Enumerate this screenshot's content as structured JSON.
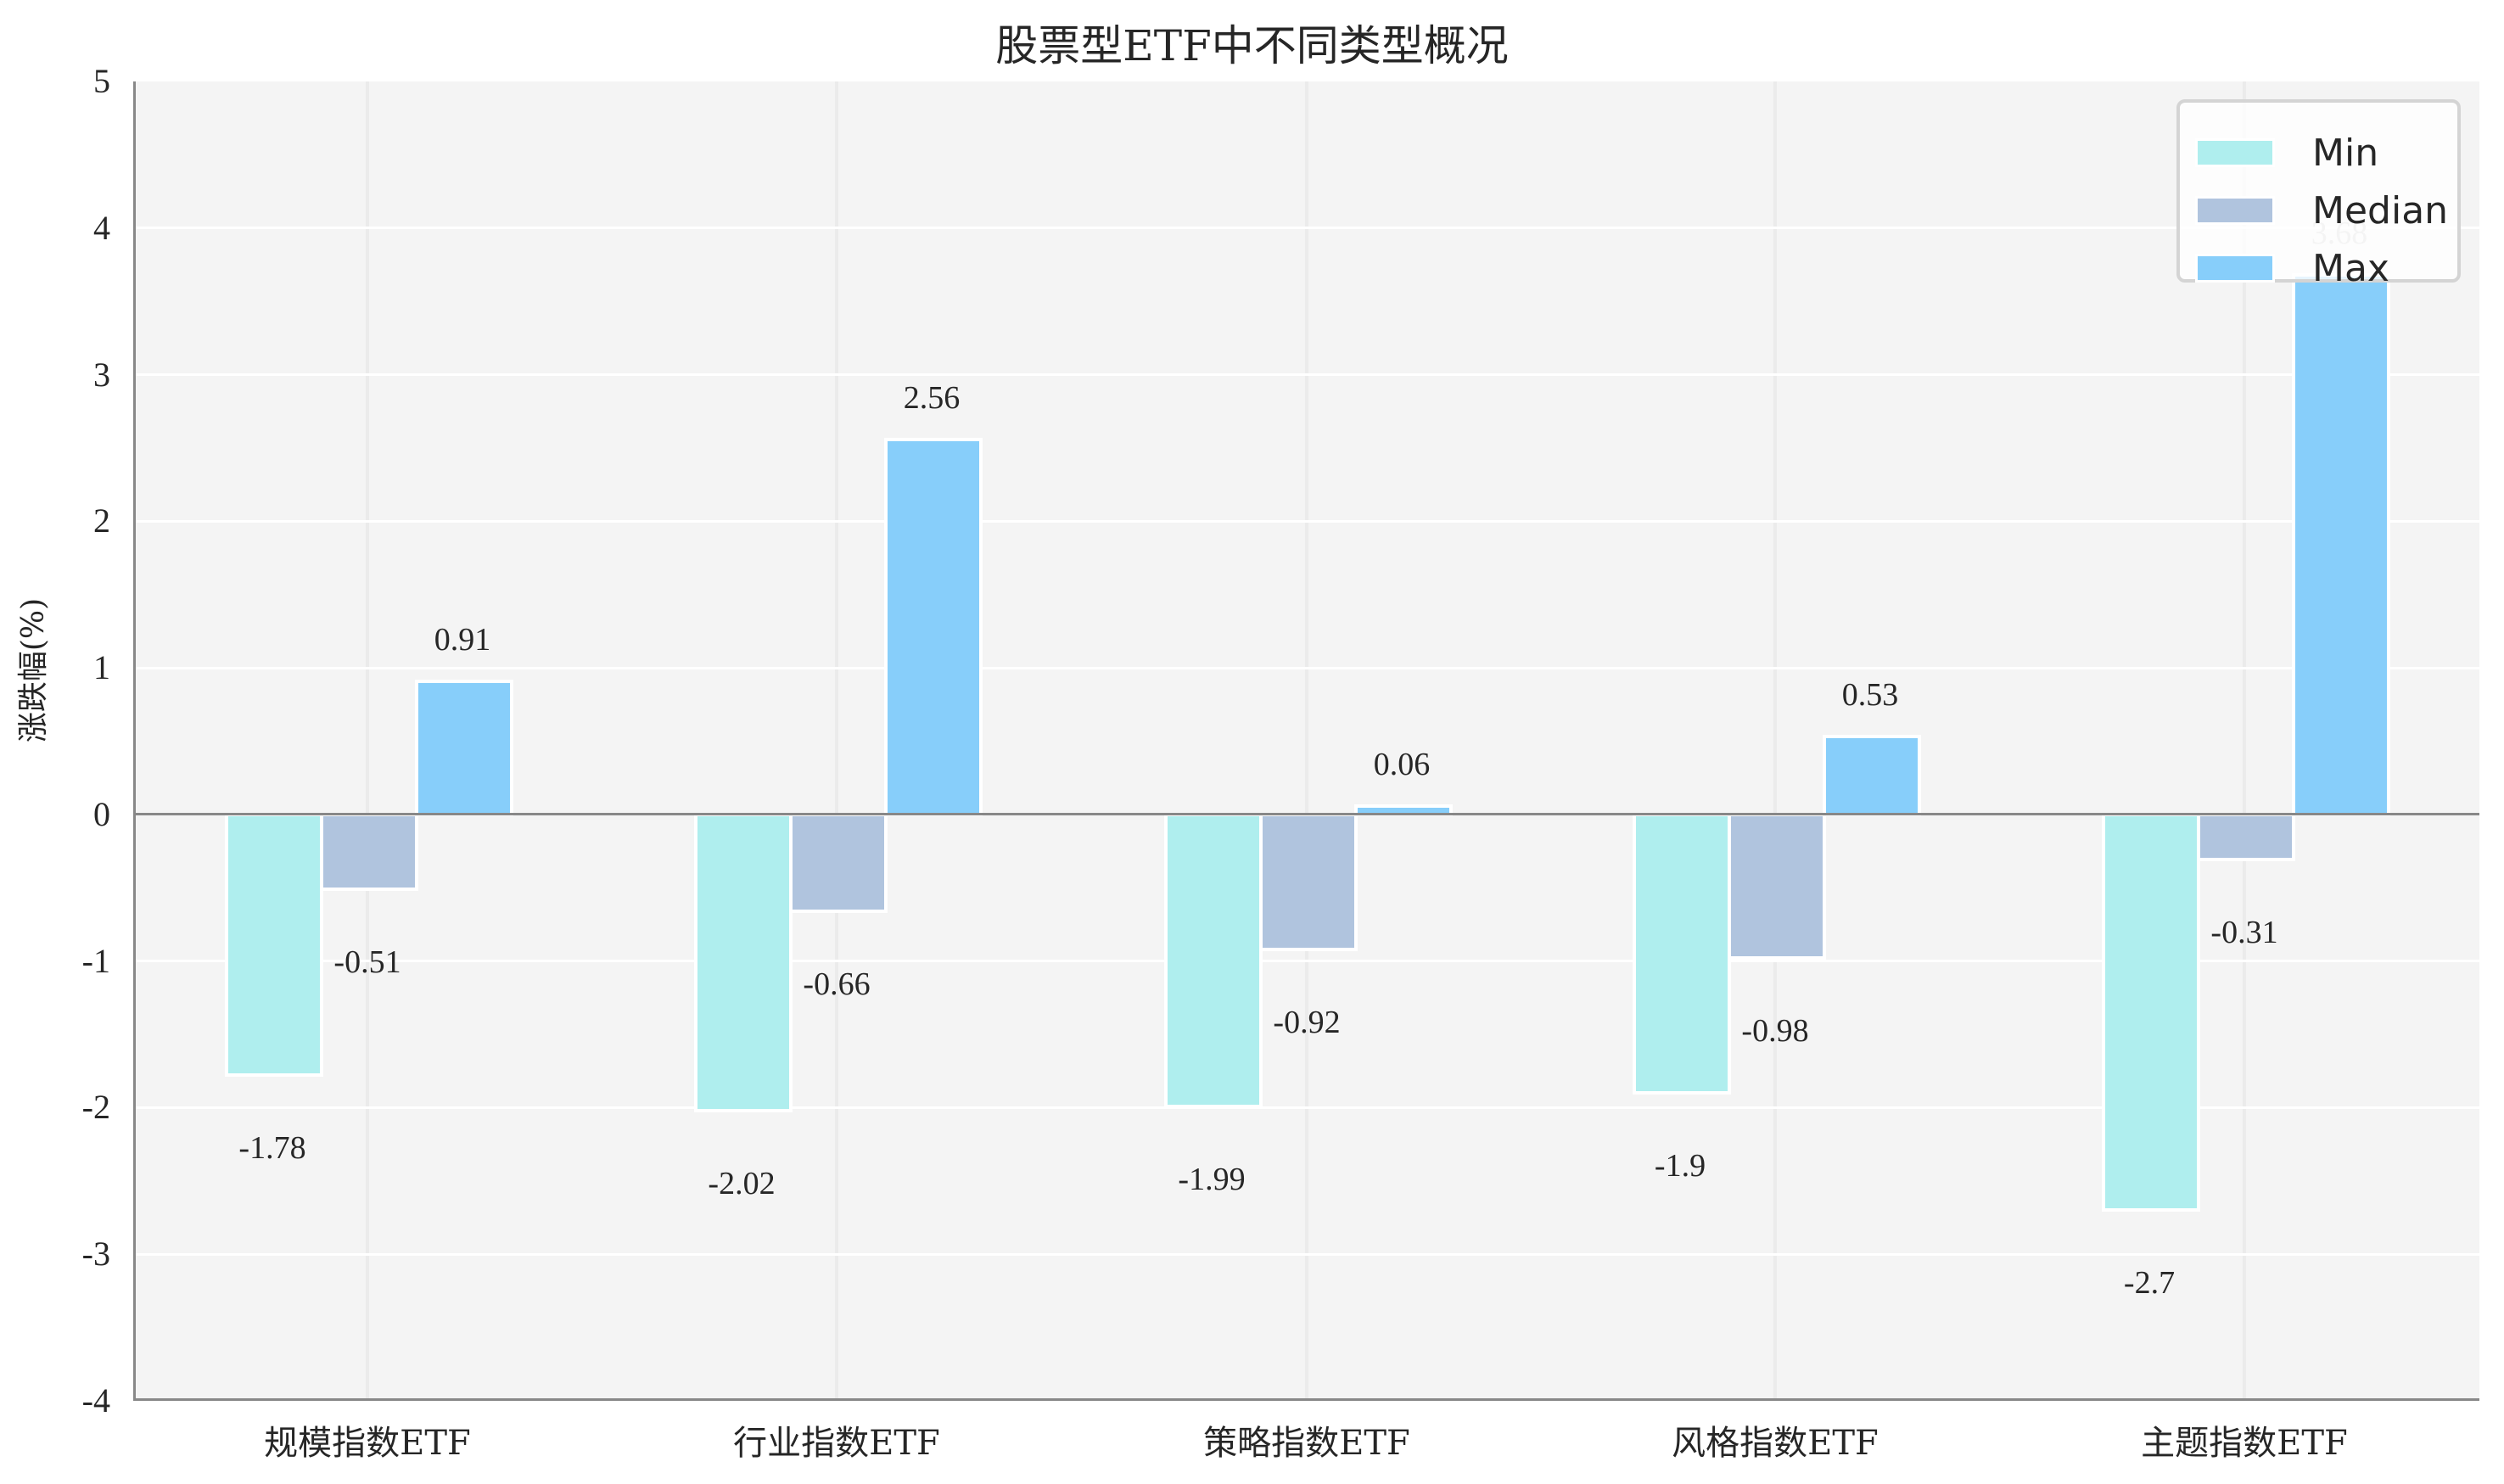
{
  "title": "股票型ETF中不同类型概况",
  "y_axis": {
    "label": "涨跌幅(%)",
    "ticks": [
      "5",
      "4",
      "3",
      "2",
      "1",
      "0",
      "-1",
      "-2",
      "-3",
      "-4"
    ]
  },
  "x_axis": {
    "ticks": [
      "规模指数ETF",
      "行业指数ETF",
      "策略指数ETF",
      "风格指数ETF",
      "主题指数ETF"
    ]
  },
  "legend": {
    "items": [
      {
        "label": "Min",
        "color": "#afeeee"
      },
      {
        "label": "Median",
        "color": "#b0c4de"
      },
      {
        "label": "Max",
        "color": "#87cefa"
      }
    ]
  },
  "value_labels": {
    "min": [
      "-1.78",
      "-2.02",
      "-1.99",
      "-1.9",
      "-2.7"
    ],
    "median": [
      "-0.51",
      "-0.66",
      "-0.92",
      "-0.98",
      "-0.31"
    ],
    "max": [
      "0.91",
      "2.56",
      "0.06",
      "0.53",
      "3.68"
    ]
  },
  "chart_data": {
    "type": "bar",
    "title": "股票型ETF中不同类型概况",
    "xlabel": "",
    "ylabel": "涨跌幅(%)",
    "ylim": [
      -4,
      5
    ],
    "grid": true,
    "legend_position": "upper right",
    "categories": [
      "规模指数ETF",
      "行业指数ETF",
      "策略指数ETF",
      "风格指数ETF",
      "主题指数ETF"
    ],
    "series": [
      {
        "name": "Min",
        "color": "#afeeee",
        "values": [
          -1.78,
          -2.02,
          -1.99,
          -1.9,
          -2.7
        ]
      },
      {
        "name": "Median",
        "color": "#b0c4de",
        "values": [
          -0.51,
          -0.66,
          -0.92,
          -0.98,
          -0.31
        ]
      },
      {
        "name": "Max",
        "color": "#87cefa",
        "values": [
          0.91,
          2.56,
          0.06,
          0.53,
          3.68
        ]
      }
    ]
  }
}
